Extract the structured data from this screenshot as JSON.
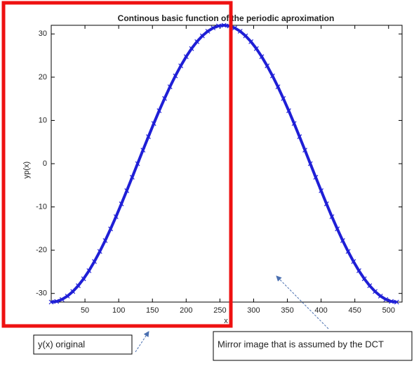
{
  "chart_data": {
    "type": "line",
    "title": "Continous basic function of the periodic aproximation",
    "xlabel": "x",
    "ylabel": "yp(x)",
    "x": [
      0,
      8,
      16,
      24,
      32,
      40,
      48,
      56,
      64,
      72,
      80,
      88,
      96,
      104,
      112,
      120,
      128,
      136,
      144,
      152,
      160,
      168,
      176,
      184,
      192,
      200,
      208,
      216,
      224,
      232,
      240,
      248,
      256,
      264,
      272,
      280,
      288,
      296,
      304,
      312,
      320,
      328,
      336,
      344,
      352,
      360,
      368,
      376,
      384,
      392,
      400,
      408,
      416,
      424,
      432,
      440,
      448,
      456,
      464,
      472,
      480,
      488,
      496,
      504,
      512
    ],
    "values": [
      -32,
      -31.85,
      -31.39,
      -30.62,
      -29.56,
      -28.22,
      -26.61,
      -24.74,
      -22.63,
      -20.3,
      -17.78,
      -15.08,
      -12.25,
      -9.29,
      -6.24,
      -3.14,
      0,
      3.14,
      6.24,
      9.29,
      12.25,
      15.08,
      17.78,
      20.3,
      22.63,
      24.74,
      26.61,
      28.22,
      29.56,
      30.62,
      31.39,
      31.85,
      32,
      31.85,
      31.39,
      30.62,
      29.56,
      28.22,
      26.61,
      24.74,
      22.63,
      20.3,
      17.78,
      15.08,
      12.25,
      9.29,
      6.24,
      3.14,
      0,
      -3.14,
      -6.24,
      -9.29,
      -12.25,
      -15.08,
      -17.78,
      -20.3,
      -22.63,
      -24.74,
      -26.61,
      -28.22,
      -29.56,
      -30.62,
      -31.39,
      -31.85,
      -32
    ],
    "color": "#1f1fd6",
    "xlim": [
      0,
      520
    ],
    "ylim": [
      -32,
      32
    ],
    "xticks": [
      50,
      100,
      150,
      200,
      250,
      300,
      350,
      400,
      450,
      500
    ],
    "yticks": [
      -30,
      -20,
      -10,
      0,
      10,
      20,
      30
    ],
    "annotations": [
      "y(x) original",
      "Mirror image that is assumed by the DCT"
    ]
  }
}
